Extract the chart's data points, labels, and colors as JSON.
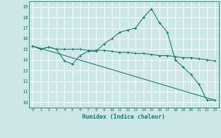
{
  "title": "",
  "xlabel": "Humidex (Indice chaleur)",
  "background_color": "#cce8e6",
  "grid_color": "#ffffff",
  "line_color": "#1a7a6e",
  "xlim": [
    -0.5,
    23.5
  ],
  "ylim": [
    9.5,
    19.5
  ],
  "xticks": [
    0,
    1,
    2,
    3,
    4,
    5,
    6,
    7,
    8,
    9,
    10,
    11,
    12,
    13,
    14,
    15,
    16,
    17,
    18,
    19,
    20,
    21,
    22,
    23
  ],
  "yticks": [
    10,
    11,
    12,
    13,
    14,
    15,
    16,
    17,
    18,
    19
  ],
  "line1_x": [
    0,
    1,
    2,
    3,
    4,
    5,
    6,
    7,
    8,
    9,
    10,
    11,
    12,
    13,
    14,
    15,
    16,
    17,
    18,
    19,
    20,
    21,
    22,
    23
  ],
  "line1_y": [
    15.3,
    15.0,
    15.2,
    15.0,
    13.9,
    13.6,
    14.4,
    14.8,
    14.8,
    15.5,
    16.0,
    16.6,
    16.8,
    17.0,
    18.0,
    18.8,
    17.5,
    16.6,
    14.0,
    13.3,
    12.6,
    11.7,
    10.2,
    10.2
  ],
  "line2_x": [
    0,
    1,
    2,
    3,
    4,
    5,
    6,
    7,
    8,
    9,
    10,
    11,
    12,
    13,
    14,
    15,
    16,
    17,
    18,
    19,
    20,
    21,
    22,
    23
  ],
  "line2_y": [
    15.3,
    15.0,
    15.2,
    15.0,
    15.0,
    15.0,
    15.0,
    14.9,
    14.9,
    14.9,
    14.8,
    14.7,
    14.7,
    14.6,
    14.6,
    14.5,
    14.4,
    14.4,
    14.3,
    14.2,
    14.2,
    14.1,
    14.0,
    13.9
  ],
  "line3_x": [
    0,
    23
  ],
  "line3_y": [
    15.3,
    10.2
  ]
}
